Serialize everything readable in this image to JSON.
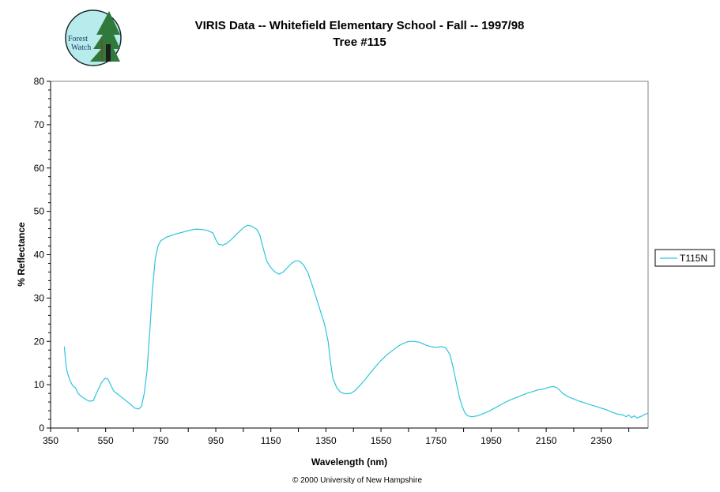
{
  "header": {
    "title_line1": "VIRIS Data -- Whitefield Elementary School - Fall -- 1997/98",
    "title_line2": "Tree #115"
  },
  "logo": {
    "line1": "Forest",
    "line2": "Watch",
    "bg_color": "#b8ecec",
    "tree_color": "#2f7a3a"
  },
  "footer": {
    "copyright": "© 2000 University of New Hampshire"
  },
  "chart_data": {
    "type": "line",
    "xlabel": "Wavelength (nm)",
    "ylabel": "% Reflectance",
    "xlim": [
      350,
      2520
    ],
    "ylim": [
      0,
      80
    ],
    "x_ticks": [
      350,
      550,
      750,
      950,
      1150,
      1350,
      1550,
      1750,
      1950,
      2150,
      2350
    ],
    "y_ticks": [
      0,
      10,
      20,
      30,
      40,
      50,
      60,
      70,
      80
    ],
    "grid": false,
    "legend_position": "right",
    "series": [
      {
        "name": "T115N",
        "color": "#2ec4dc",
        "points": [
          [
            400,
            18.8
          ],
          [
            405,
            15
          ],
          [
            410,
            13
          ],
          [
            420,
            11
          ],
          [
            430,
            9.8
          ],
          [
            440,
            9.3
          ],
          [
            450,
            8
          ],
          [
            460,
            7.4
          ],
          [
            475,
            6.7
          ],
          [
            490,
            6.2
          ],
          [
            505,
            6.3
          ],
          [
            520,
            8.5
          ],
          [
            535,
            10.5
          ],
          [
            548,
            11.5
          ],
          [
            558,
            11.3
          ],
          [
            568,
            10
          ],
          [
            580,
            8.5
          ],
          [
            600,
            7.5
          ],
          [
            620,
            6.5
          ],
          [
            640,
            5.5
          ],
          [
            655,
            4.6
          ],
          [
            670,
            4.4
          ],
          [
            680,
            5
          ],
          [
            690,
            8
          ],
          [
            700,
            13
          ],
          [
            710,
            22
          ],
          [
            720,
            32
          ],
          [
            730,
            39
          ],
          [
            740,
            42
          ],
          [
            750,
            43.2
          ],
          [
            770,
            44
          ],
          [
            800,
            44.7
          ],
          [
            830,
            45.2
          ],
          [
            860,
            45.7
          ],
          [
            880,
            45.9
          ],
          [
            900,
            45.8
          ],
          [
            920,
            45.6
          ],
          [
            940,
            45
          ],
          [
            950,
            43.5
          ],
          [
            960,
            42.4
          ],
          [
            975,
            42.2
          ],
          [
            990,
            42.6
          ],
          [
            1010,
            43.7
          ],
          [
            1030,
            45
          ],
          [
            1050,
            46.2
          ],
          [
            1065,
            46.8
          ],
          [
            1080,
            46.6
          ],
          [
            1100,
            45.8
          ],
          [
            1110,
            44.5
          ],
          [
            1120,
            42
          ],
          [
            1135,
            38.5
          ],
          [
            1150,
            37
          ],
          [
            1165,
            36
          ],
          [
            1180,
            35.5
          ],
          [
            1195,
            36
          ],
          [
            1210,
            37
          ],
          [
            1225,
            38
          ],
          [
            1240,
            38.6
          ],
          [
            1255,
            38.5
          ],
          [
            1270,
            37.5
          ],
          [
            1285,
            35.8
          ],
          [
            1300,
            33
          ],
          [
            1315,
            30
          ],
          [
            1330,
            27
          ],
          [
            1345,
            24
          ],
          [
            1358,
            20
          ],
          [
            1365,
            16
          ],
          [
            1375,
            11.5
          ],
          [
            1390,
            9.2
          ],
          [
            1405,
            8.2
          ],
          [
            1420,
            7.9
          ],
          [
            1440,
            8
          ],
          [
            1455,
            8.6
          ],
          [
            1470,
            9.6
          ],
          [
            1490,
            11
          ],
          [
            1510,
            12.6
          ],
          [
            1530,
            14.2
          ],
          [
            1550,
            15.6
          ],
          [
            1570,
            16.8
          ],
          [
            1590,
            17.8
          ],
          [
            1610,
            18.8
          ],
          [
            1630,
            19.5
          ],
          [
            1650,
            20
          ],
          [
            1670,
            20
          ],
          [
            1690,
            19.8
          ],
          [
            1710,
            19.2
          ],
          [
            1730,
            18.8
          ],
          [
            1750,
            18.6
          ],
          [
            1770,
            18.8
          ],
          [
            1785,
            18.5
          ],
          [
            1800,
            17
          ],
          [
            1812,
            14
          ],
          [
            1825,
            10
          ],
          [
            1835,
            7
          ],
          [
            1845,
            5
          ],
          [
            1855,
            3.5
          ],
          [
            1865,
            2.8
          ],
          [
            1880,
            2.6
          ],
          [
            1900,
            2.8
          ],
          [
            1920,
            3.3
          ],
          [
            1940,
            3.8
          ],
          [
            1960,
            4.5
          ],
          [
            1980,
            5.2
          ],
          [
            2000,
            5.9
          ],
          [
            2020,
            6.5
          ],
          [
            2040,
            7
          ],
          [
            2060,
            7.5
          ],
          [
            2080,
            8
          ],
          [
            2100,
            8.4
          ],
          [
            2120,
            8.8
          ],
          [
            2140,
            9
          ],
          [
            2160,
            9.4
          ],
          [
            2175,
            9.6
          ],
          [
            2185,
            9.4
          ],
          [
            2195,
            9
          ],
          [
            2210,
            8
          ],
          [
            2230,
            7.2
          ],
          [
            2250,
            6.7
          ],
          [
            2270,
            6.2
          ],
          [
            2290,
            5.8
          ],
          [
            2310,
            5.4
          ],
          [
            2330,
            5
          ],
          [
            2350,
            4.6
          ],
          [
            2370,
            4.2
          ],
          [
            2390,
            3.6
          ],
          [
            2410,
            3.2
          ],
          [
            2430,
            3
          ],
          [
            2440,
            2.6
          ],
          [
            2450,
            3
          ],
          [
            2460,
            2.4
          ],
          [
            2470,
            2.8
          ],
          [
            2480,
            2.3
          ],
          [
            2490,
            2.6
          ],
          [
            2500,
            2.8
          ],
          [
            2510,
            3.2
          ],
          [
            2520,
            3.4
          ]
        ]
      }
    ]
  }
}
